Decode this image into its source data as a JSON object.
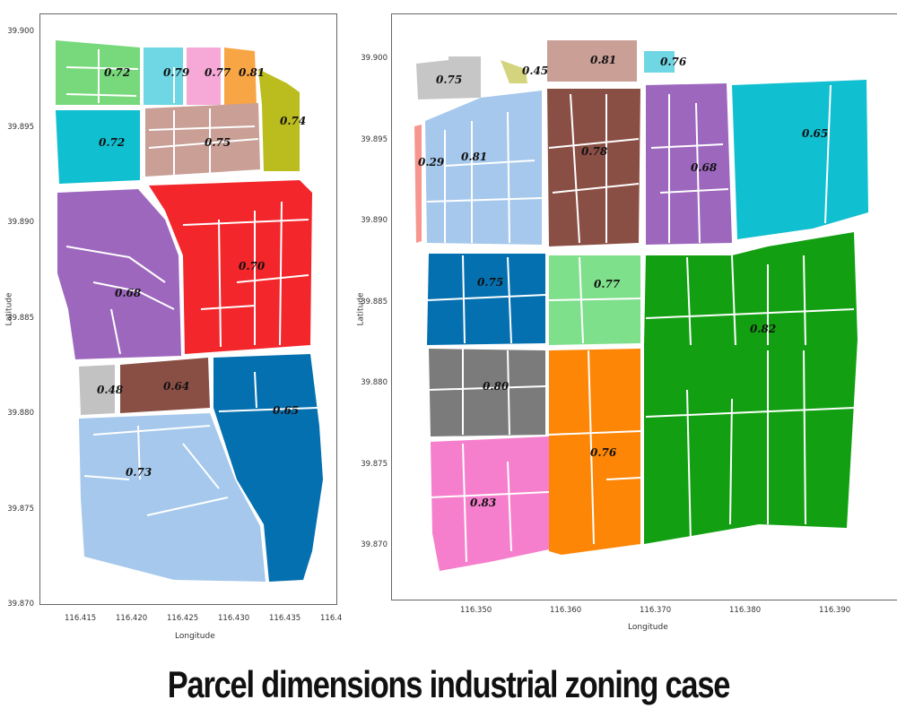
{
  "caption": "Parcel dimensions  industrial zoning case",
  "maps": [
    {
      "xlabel": "Longitude",
      "ylabel": "Latitude",
      "x_ticks": [
        "116.415",
        "116.420",
        "116.425",
        "116.430",
        "116.435",
        "116.4"
      ],
      "y_ticks": [
        "39.900",
        "39.895",
        "39.890",
        "39.885",
        "39.880",
        "39.875",
        "39.870"
      ],
      "parcels": [
        {
          "id": "L1",
          "label": "0.72",
          "color": "#77d97b"
        },
        {
          "id": "L2",
          "label": "0.79",
          "color": "#6fd6e3"
        },
        {
          "id": "L3",
          "label": "0.77",
          "color": "#f6a8d6"
        },
        {
          "id": "L4",
          "label": "0.81",
          "color": "#f8a545"
        },
        {
          "id": "L5",
          "label": "0.74",
          "color": "#bbbc1e"
        },
        {
          "id": "L6",
          "label": "0.72",
          "color": "#10bfd0"
        },
        {
          "id": "L7",
          "label": "0.75",
          "color": "#c99f96"
        },
        {
          "id": "L8",
          "label": "0.68",
          "color": "#9d67be"
        },
        {
          "id": "L9",
          "label": "0.70",
          "color": "#f2262b"
        },
        {
          "id": "L10",
          "label": "0.48",
          "color": "#c2c2c2"
        },
        {
          "id": "L11",
          "label": "0.64",
          "color": "#8a4f44"
        },
        {
          "id": "L12",
          "label": "0.65",
          "color": "#0570b0"
        },
        {
          "id": "L13",
          "label": "0.73",
          "color": "#a5c8ec"
        }
      ]
    },
    {
      "xlabel": "Longitude",
      "ylabel": "Latitude",
      "x_ticks": [
        "116.350",
        "116.360",
        "116.370",
        "116.380",
        "116.390"
      ],
      "y_ticks": [
        "39.900",
        "39.895",
        "39.890",
        "39.885",
        "39.880",
        "39.875",
        "39.870"
      ],
      "parcels": [
        {
          "id": "R1",
          "label": "0.75",
          "color": "#c6c6c6"
        },
        {
          "id": "R2",
          "label": "0.45",
          "color": "#d4d47e"
        },
        {
          "id": "R3",
          "label": "0.81",
          "color": "#c99f96"
        },
        {
          "id": "R4",
          "label": "0.76",
          "color": "#6fd6e3"
        },
        {
          "id": "R5",
          "label": "0.29",
          "color": "#f7958f"
        },
        {
          "id": "R6",
          "label": "0.81",
          "color": "#a5c8ec"
        },
        {
          "id": "R7",
          "label": "0.78",
          "color": "#8a4f44"
        },
        {
          "id": "R8",
          "label": "0.68",
          "color": "#9d67be"
        },
        {
          "id": "R9",
          "label": "0.65",
          "color": "#10bfd0"
        },
        {
          "id": "R10",
          "label": "0.75",
          "color": "#0570b0"
        },
        {
          "id": "R11",
          "label": "0.77",
          "color": "#7fe08b"
        },
        {
          "id": "R12",
          "label": "0.82",
          "color": "#12a012"
        },
        {
          "id": "R13",
          "label": "0.80",
          "color": "#7b7b7b"
        },
        {
          "id": "R14",
          "label": "0.76",
          "color": "#fd8607"
        },
        {
          "id": "R15",
          "label": "0.83",
          "color": "#f57fcc"
        }
      ]
    }
  ]
}
